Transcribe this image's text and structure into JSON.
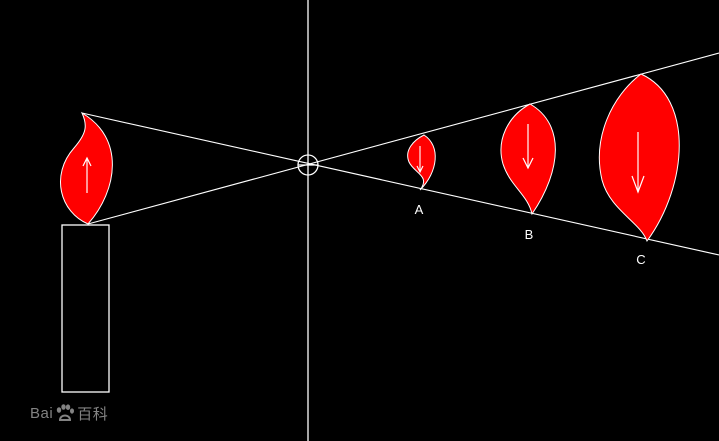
{
  "colors": {
    "background": "#000000",
    "line": "#ffffff",
    "flame": "#ff0000"
  },
  "images": [
    {
      "label": "A"
    },
    {
      "label": "B"
    },
    {
      "label": "C"
    }
  ],
  "watermark": {
    "text_left": "Bai",
    "icon": "paw-icon",
    "text_right": "百科"
  }
}
